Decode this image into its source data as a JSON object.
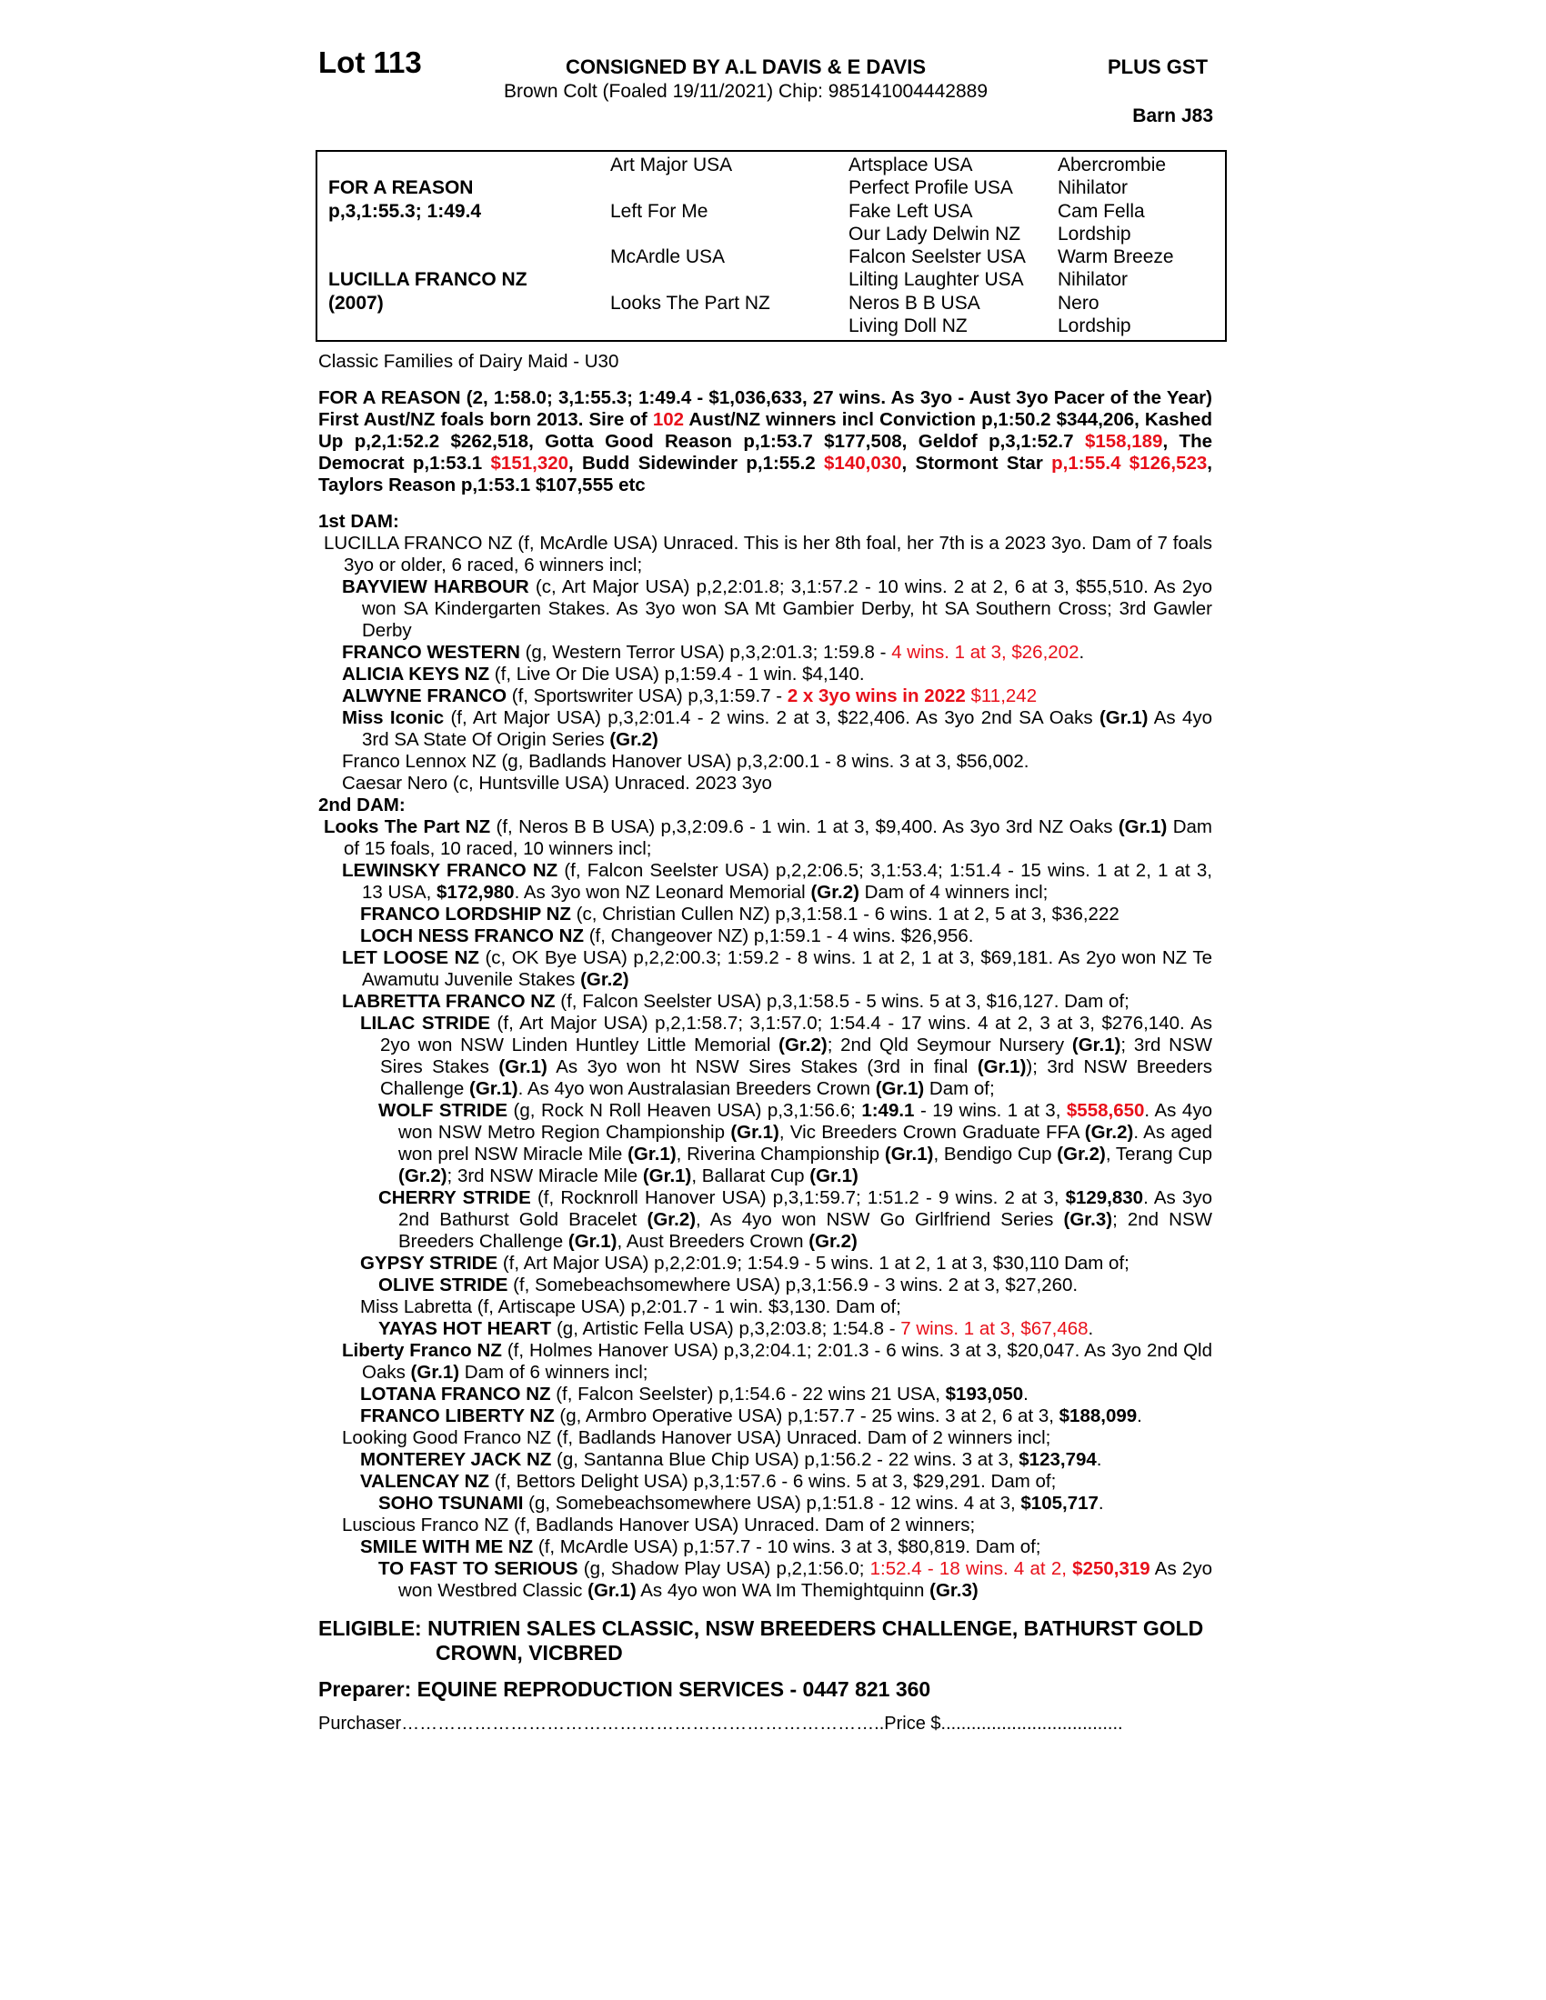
{
  "header": {
    "lot": "Lot 113",
    "consignor": "CONSIGNED BY A.L DAVIS & E DAVIS",
    "gst": "PLUS GST",
    "description": "Brown Colt (Foaled 19/11/2021) Chip: 985141004442889",
    "barn": "Barn J83"
  },
  "pedigree": {
    "sire": {
      "name": "FOR A REASON",
      "record": "p,3,1:55.3; 1:49.4"
    },
    "dam": {
      "name": "LUCILLA FRANCO NZ",
      "foaled": "(2007)"
    },
    "generation_2": [
      "Art Major USA",
      "Left For Me",
      "McArdle USA",
      "Looks The Part NZ"
    ],
    "generation_3": [
      "Artsplace USA",
      "Perfect Profile USA",
      "Fake Left USA",
      "Our Lady Delwin NZ",
      "Falcon Seelster USA",
      "Lilting Laughter USA",
      "Neros B B USA",
      "Living Doll NZ"
    ],
    "generation_4": [
      "Abercrombie",
      "Nihilator",
      "Cam Fella",
      "Lordship",
      "Warm Breeze",
      "Nihilator",
      "Nero",
      "Lordship"
    ]
  },
  "family": "Classic Families of Dairy Maid - U30",
  "sire_summary": [
    {
      "text": "FOR A REASON (2, 1:58.0; 3,1:55.3; 1:49.4 - $1,036,633, 27 wins. As 3yo - Aust 3yo Pacer of the Year) First Aust/NZ foals born 2013. Sire of ",
      "bold": true
    },
    {
      "text": "102",
      "bold": true,
      "color": "#e8101a"
    },
    {
      "text": " Aust/NZ winners incl Conviction p,1:50.2 $344,206, Kashed Up p,2,1:52.2 $262,518, Gotta Good Reason p,1:53.7 $177,508, Geldof p,3,1:52.7 ",
      "bold": true
    },
    {
      "text": "$158,189",
      "bold": true,
      "color": "#e8101a"
    },
    {
      "text": ", The Democrat p,1:53.1 ",
      "bold": true
    },
    {
      "text": "$151,320",
      "bold": true,
      "color": "#e8101a"
    },
    {
      "text": ", Budd Sidewinder p,1:55.2 ",
      "bold": true
    },
    {
      "text": "$140,030",
      "bold": true,
      "color": "#e8101a"
    },
    {
      "text": ", Stormont Star ",
      "bold": true
    },
    {
      "text": "p,1:55.4 $126,523",
      "bold": true,
      "color": "#e8101a"
    },
    {
      "text": ", Taylors Reason p,1:53.1 $107,555 etc",
      "bold": true
    }
  ],
  "dams": [
    {
      "heading": "1st DAM:",
      "entries": [
        {
          "level": 0,
          "runs": [
            {
              "text": "LUCILLA FRANCO NZ (f, McArdle USA) Unraced. This is her 8th foal, her 7th is a 2023 3yo. Dam of 7 foals 3yo or older, 6 raced, 6 winners incl;"
            }
          ]
        },
        {
          "level": 1,
          "runs": [
            {
              "text": "BAYVIEW HARBOUR",
              "bold": true
            },
            {
              "text": " (c, Art Major USA) p,2,2:01.8; 3,1:57.2 - 10 wins. 2 at 2, 6 at 3, $55,510. As 2yo won SA Kindergarten Stakes. As 3yo won SA Mt Gambier Derby, ht SA Southern Cross; 3rd Gawler Derby"
            }
          ]
        },
        {
          "level": 1,
          "runs": [
            {
              "text": "FRANCO WESTERN",
              "bold": true
            },
            {
              "text": " (g, Western Terror USA) p,3,2:01.3; 1:59.8 - "
            },
            {
              "text": "4 wins. 1 at 3, $26,202",
              "color": "#e8101a"
            },
            {
              "text": "."
            }
          ]
        },
        {
          "level": 1,
          "runs": [
            {
              "text": "ALICIA KEYS NZ",
              "bold": true
            },
            {
              "text": " (f, Live Or Die USA) p,1:59.4 - 1 win. $4,140."
            }
          ]
        },
        {
          "level": 1,
          "runs": [
            {
              "text": "ALWYNE FRANCO",
              "bold": true
            },
            {
              "text": " (f, Sportswriter USA) p,3,1:59.7 - "
            },
            {
              "text": "2 x 3yo wins in 2022",
              "bold": true,
              "color": "#e8101a"
            },
            {
              "text": " $11,242",
              "color": "#e8101a"
            }
          ]
        },
        {
          "level": 1,
          "runs": [
            {
              "text": "Miss Iconic",
              "bold": true
            },
            {
              "text": " (f, Art Major USA) p,3,2:01.4 - 2 wins. 2 at 3, $22,406. As 3yo 2nd SA Oaks "
            },
            {
              "text": "(Gr.1)",
              "bold": true
            },
            {
              "text": " As 4yo 3rd SA State Of Origin Series "
            },
            {
              "text": "(Gr.2)",
              "bold": true
            }
          ]
        },
        {
          "level": 1,
          "runs": [
            {
              "text": "Franco Lennox NZ (g, Badlands Hanover USA) p,3,2:00.1 - 8 wins. 3 at 3, $56,002."
            }
          ]
        },
        {
          "level": 1,
          "runs": [
            {
              "text": "Caesar Nero (c, Huntsville USA) Unraced. 2023 3yo"
            }
          ]
        }
      ]
    },
    {
      "heading": "2nd DAM:",
      "entries": [
        {
          "level": 0,
          "runs": [
            {
              "text": "Looks The Part NZ",
              "bold": true
            },
            {
              "text": " (f, Neros B B USA) p,3,2:09.6 - 1 win. 1 at 3, $9,400. As 3yo 3rd NZ Oaks "
            },
            {
              "text": "(Gr.1)",
              "bold": true
            },
            {
              "text": " Dam of 15 foals, 10 raced, 10 winners incl;"
            }
          ]
        },
        {
          "level": 1,
          "runs": [
            {
              "text": "LEWINSKY FRANCO NZ",
              "bold": true
            },
            {
              "text": " (f, Falcon Seelster USA) p,2,2:06.5; 3,1:53.4; 1:51.4 - 15 wins. 1 at 2, 1 at 3, 13 USA, "
            },
            {
              "text": "$172,980",
              "bold": true
            },
            {
              "text": ". As 3yo won NZ Leonard Memorial "
            },
            {
              "text": "(Gr.2)",
              "bold": true
            },
            {
              "text": " Dam of 4 winners incl;"
            }
          ]
        },
        {
          "level": 2,
          "runs": [
            {
              "text": "FRANCO LORDSHIP NZ",
              "bold": true
            },
            {
              "text": " (c, Christian Cullen NZ) p,3,1:58.1 - 6 wins. 1 at 2, 5 at 3, $36,222"
            }
          ]
        },
        {
          "level": 2,
          "runs": [
            {
              "text": "LOCH NESS FRANCO NZ",
              "bold": true
            },
            {
              "text": " (f, Changeover NZ) p,1:59.1 - 4 wins. $26,956."
            }
          ]
        },
        {
          "level": 1,
          "runs": [
            {
              "text": "LET LOOSE NZ",
              "bold": true
            },
            {
              "text": " (c, OK Bye USA) p,2,2:00.3; 1:59.2 - 8 wins. 1 at 2, 1 at 3, $69,181. As 2yo won NZ Te Awamutu Juvenile Stakes "
            },
            {
              "text": "(Gr.2)",
              "bold": true
            }
          ]
        },
        {
          "level": 1,
          "runs": [
            {
              "text": "LABRETTA FRANCO NZ",
              "bold": true
            },
            {
              "text": " (f, Falcon Seelster USA) p,3,1:58.5 - 5 wins. 5 at 3, $16,127. Dam of;"
            }
          ]
        },
        {
          "level": 2,
          "runs": [
            {
              "text": "LILAC STRIDE",
              "bold": true
            },
            {
              "text": " (f, Art Major USA) p,2,1:58.7; 3,1:57.0; 1:54.4 - 17 wins. 4 at 2, 3 at 3, $276,140. As 2yo won NSW Linden Huntley Little Memorial "
            },
            {
              "text": "(Gr.2)",
              "bold": true
            },
            {
              "text": "; 2nd Qld Seymour Nursery "
            },
            {
              "text": "(Gr.1)",
              "bold": true
            },
            {
              "text": "; 3rd NSW Sires Stakes "
            },
            {
              "text": "(Gr.1)",
              "bold": true
            },
            {
              "text": " As 3yo won ht NSW Sires Stakes (3rd in final "
            },
            {
              "text": "(Gr.1)",
              "bold": true
            },
            {
              "text": "); 3rd NSW Breeders Challenge "
            },
            {
              "text": "(Gr.1)",
              "bold": true
            },
            {
              "text": ". As 4yo won Australasian Breeders Crown "
            },
            {
              "text": "(Gr.1)",
              "bold": true
            },
            {
              "text": " Dam of;"
            }
          ]
        },
        {
          "level": 3,
          "runs": [
            {
              "text": "WOLF STRIDE",
              "bold": true
            },
            {
              "text": " (g, Rock N Roll Heaven USA) p,3,1:56.6; "
            },
            {
              "text": "1:49.1",
              "bold": true
            },
            {
              "text": " - 19 wins. 1 at 3, "
            },
            {
              "text": "$558,650",
              "bold": true,
              "color": "#e8101a"
            },
            {
              "text": ". As 4yo won NSW Metro Region Championship "
            },
            {
              "text": "(Gr.1)",
              "bold": true
            },
            {
              "text": ", Vic Breeders Crown Graduate FFA "
            },
            {
              "text": "(Gr.2)",
              "bold": true
            },
            {
              "text": ". As aged won prel NSW Miracle Mile "
            },
            {
              "text": "(Gr.1)",
              "bold": true
            },
            {
              "text": ", Riverina Championship "
            },
            {
              "text": "(Gr.1)",
              "bold": true
            },
            {
              "text": ", Bendigo Cup "
            },
            {
              "text": "(Gr.2)",
              "bold": true
            },
            {
              "text": ", Terang Cup "
            },
            {
              "text": "(Gr.2)",
              "bold": true
            },
            {
              "text": "; 3rd NSW Miracle Mile "
            },
            {
              "text": "(Gr.1)",
              "bold": true
            },
            {
              "text": ", Ballarat Cup "
            },
            {
              "text": "(Gr.1)",
              "bold": true
            }
          ]
        },
        {
          "level": 3,
          "runs": [
            {
              "text": "CHERRY STRIDE",
              "bold": true
            },
            {
              "text": " (f, Rocknroll Hanover USA) p,3,1:59.7; 1:51.2 - 9 wins. 2 at 3, "
            },
            {
              "text": "$129,830",
              "bold": true
            },
            {
              "text": ". As 3yo 2nd Bathurst Gold Bracelet "
            },
            {
              "text": "(Gr.2)",
              "bold": true
            },
            {
              "text": ", As 4yo won NSW Go Girlfriend Series "
            },
            {
              "text": "(Gr.3)",
              "bold": true
            },
            {
              "text": "; 2nd NSW Breeders Challenge "
            },
            {
              "text": "(Gr.1)",
              "bold": true
            },
            {
              "text": ", Aust Breeders Crown "
            },
            {
              "text": "(Gr.2)",
              "bold": true
            }
          ]
        },
        {
          "level": 2,
          "runs": [
            {
              "text": "GYPSY STRIDE",
              "bold": true
            },
            {
              "text": " (f, Art Major USA) p,2,2:01.9; 1:54.9 - 5 wins. 1 at 2, 1 at 3, $30,110 Dam of;"
            }
          ]
        },
        {
          "level": 3,
          "runs": [
            {
              "text": "OLIVE STRIDE",
              "bold": true
            },
            {
              "text": " (f, Somebeachsomewhere USA) p,3,1:56.9 - 3 wins. 2 at 3, $27,260."
            }
          ]
        },
        {
          "level": 2,
          "runs": [
            {
              "text": "Miss Labretta (f, Artiscape USA) p,2:01.7 - 1 win. $3,130. Dam of;"
            }
          ]
        },
        {
          "level": 3,
          "runs": [
            {
              "text": "YAYAS HOT HEART",
              "bold": true
            },
            {
              "text": " (g, Artistic Fella USA) p,3,2:03.8; 1:54.8 - "
            },
            {
              "text": "7 wins. 1 at 3, $67,468",
              "color": "#e8101a"
            },
            {
              "text": "."
            }
          ]
        },
        {
          "level": 1,
          "runs": [
            {
              "text": "Liberty Franco NZ",
              "bold": true
            },
            {
              "text": " (f, Holmes Hanover USA) p,3,2:04.1; 2:01.3 - 6 wins. 3 at 3, $20,047. As 3yo 2nd Qld Oaks "
            },
            {
              "text": "(Gr.1)",
              "bold": true
            },
            {
              "text": " Dam of 6 winners incl;"
            }
          ]
        },
        {
          "level": 2,
          "runs": [
            {
              "text": "LOTANA FRANCO NZ",
              "bold": true
            },
            {
              "text": " (f, Falcon Seelster) p,1:54.6 - 22 wins 21 USA, "
            },
            {
              "text": "$193,050",
              "bold": true
            },
            {
              "text": "."
            }
          ]
        },
        {
          "level": 2,
          "runs": [
            {
              "text": "FRANCO LIBERTY NZ",
              "bold": true
            },
            {
              "text": " (g, Armbro Operative USA) p,1:57.7 - 25 wins. 3 at 2, 6 at 3, "
            },
            {
              "text": "$188,099",
              "bold": true
            },
            {
              "text": "."
            }
          ]
        },
        {
          "level": 1,
          "runs": [
            {
              "text": "Looking Good Franco NZ (f, Badlands Hanover USA) Unraced. Dam of 2 winners incl;"
            }
          ]
        },
        {
          "level": 2,
          "runs": [
            {
              "text": "MONTEREY JACK NZ",
              "bold": true
            },
            {
              "text": " (g, Santanna Blue Chip USA) p,1:56.2 - 22 wins. 3 at 3, "
            },
            {
              "text": "$123,794",
              "bold": true
            },
            {
              "text": "."
            }
          ]
        },
        {
          "level": 2,
          "runs": [
            {
              "text": "VALENCAY NZ",
              "bold": true
            },
            {
              "text": " (f, Bettors Delight USA) p,3,1:57.6 - 6 wins. 5 at 3, $29,291. Dam of;"
            }
          ]
        },
        {
          "level": 3,
          "runs": [
            {
              "text": "SOHO TSUNAMI",
              "bold": true
            },
            {
              "text": " (g, Somebeachsomewhere USA) p,1:51.8 - 12 wins. 4 at 3, "
            },
            {
              "text": "$105,717",
              "bold": true
            },
            {
              "text": "."
            }
          ]
        },
        {
          "level": 1,
          "runs": [
            {
              "text": "Luscious Franco NZ (f, Badlands Hanover USA) Unraced. Dam of 2 winners;"
            }
          ]
        },
        {
          "level": 2,
          "runs": [
            {
              "text": "SMILE WITH ME NZ",
              "bold": true
            },
            {
              "text": " (f, McArdle USA) p,1:57.7 - 10 wins. 3 at 3, $80,819. Dam of;"
            }
          ]
        },
        {
          "level": 3,
          "runs": [
            {
              "text": "TO FAST TO SERIOUS",
              "bold": true
            },
            {
              "text": " (g, Shadow Play USA) p,2,1:56.0; "
            },
            {
              "text": "1:52.4 - 18 wins. 4 at 2, ",
              "color": "#e8101a"
            },
            {
              "text": "$250,319",
              "bold": true,
              "color": "#e8101a"
            },
            {
              "text": " As 2yo won Westbred Classic "
            },
            {
              "text": "(Gr.1)",
              "bold": true
            },
            {
              "text": " As 4yo won WA Im Themightquinn "
            },
            {
              "text": "(Gr.3)",
              "bold": true
            }
          ]
        }
      ]
    }
  ],
  "footer": {
    "eligible": "ELIGIBLE: NUTRIEN SALES CLASSIC, NSW BREEDERS CHALLENGE, BATHURST GOLD CROWN, VICBRED",
    "preparer": "Preparer: EQUINE REPRODUCTION SERVICES - 0447 821 360",
    "purchaser": "Purchaser……………………………………………………………………..Price $...................................."
  }
}
